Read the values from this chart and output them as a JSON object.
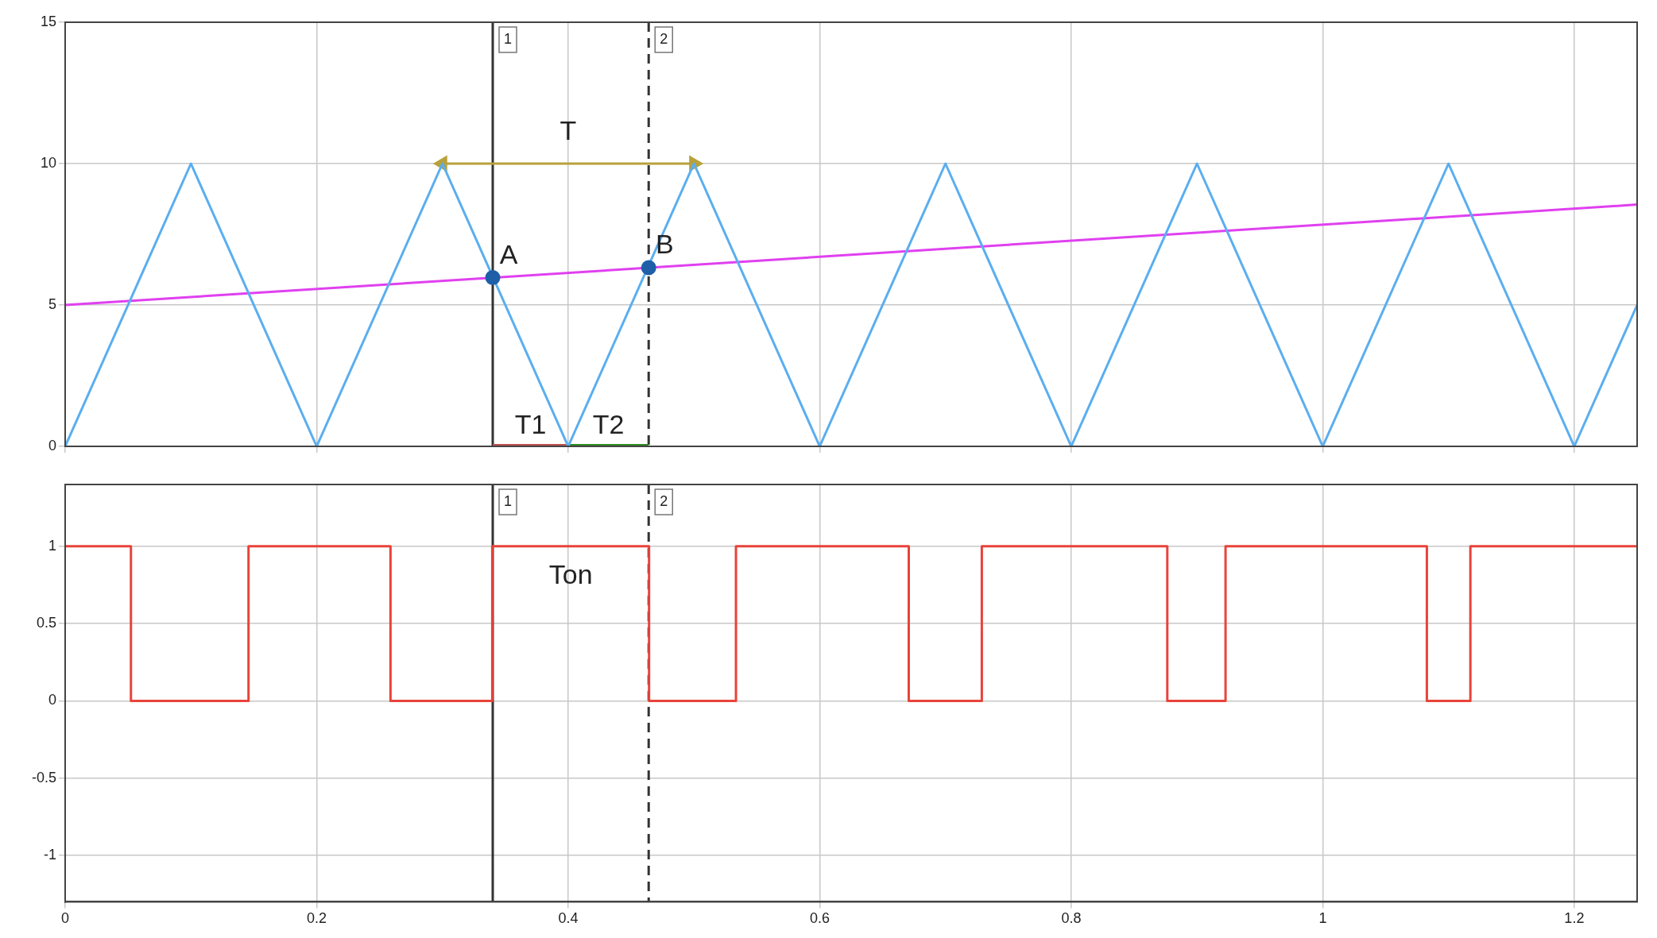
{
  "chart_data": [
    {
      "type": "line",
      "xlim": [
        0,
        1.25
      ],
      "xticks": [
        0,
        0.2,
        0.4,
        0.6,
        0.8,
        1,
        1.2
      ],
      "ylim": [
        0,
        15
      ],
      "yticks": [
        0,
        5,
        10,
        15
      ],
      "grid": true,
      "tick_labels": "y",
      "series": [
        {
          "color": "#5aaef0",
          "x": [
            0,
            0.1,
            0.2,
            0.3,
            0.4,
            0.5,
            0.6,
            0.7,
            0.8,
            0.9,
            1,
            1.1,
            1.2,
            1.25
          ],
          "values": [
            0,
            10,
            0,
            10,
            0,
            10,
            0,
            10,
            0,
            10,
            0,
            10,
            0,
            5
          ]
        },
        {
          "color": "#e040f0",
          "x": [
            0,
            1.25
          ],
          "values": [
            5,
            8.55
          ]
        },
        {
          "color": "#b8a13a",
          "x": [
            0.3,
            0.5
          ],
          "values": [
            10,
            10
          ],
          "marker": "triangle"
        },
        {
          "type": "scatter",
          "color": "#1f5fa8",
          "x": [
            0.34,
            0.464
          ],
          "values": [
            5.97,
            6.32
          ],
          "marker": "circle"
        },
        {
          "name": "T1",
          "color": "#c0504d",
          "x": [
            0.34,
            0.4
          ],
          "values": [
            0,
            0
          ]
        },
        {
          "name": "T2",
          "color": "#2e8b22",
          "x": [
            0.4,
            0.464
          ],
          "values": [
            0,
            0
          ]
        }
      ],
      "ref_lines": [
        {
          "axis": "x",
          "value": 0.34,
          "color": "#333333",
          "line_style": "solid"
        },
        {
          "axis": "x",
          "value": 0.464,
          "color": "#333333",
          "line_style": "dashed"
        }
      ],
      "annotations": [
        "1",
        "2",
        "T",
        {
          "text": "A",
          "x": 0.34,
          "y": 5.97
        },
        {
          "text": "B",
          "x": 0.464,
          "y": 6.32
        }
      ]
    },
    {
      "type": "step",
      "xlim": [
        0,
        1.25
      ],
      "xticks": [
        0,
        0.2,
        0.4,
        0.6,
        0.8,
        1,
        1.2
      ],
      "ylim": [
        -1.3,
        1.4
      ],
      "yticks": [
        -1,
        -0.5,
        0,
        0.5,
        1
      ],
      "grid": true,
      "series": [
        {
          "color": "#e8433a",
          "x": [
            0,
            0.0523,
            0.1458,
            0.2587,
            0.3396,
            0.4643,
            0.5334,
            0.6708,
            0.7289,
            0.8764,
            0.9227,
            1.0828,
            1.1174,
            1.25
          ],
          "values": [
            1,
            0,
            1,
            0,
            1,
            0,
            1,
            0,
            1,
            0,
            1,
            0,
            1,
            1
          ]
        }
      ],
      "ref_lines": [
        {
          "axis": "x",
          "value": 0.34,
          "color": "#333333",
          "line_style": "solid"
        },
        {
          "axis": "x",
          "value": 0.464,
          "color": "#333333",
          "line_style": "dashed"
        }
      ],
      "annotations": [
        "1",
        "2",
        "Ton"
      ]
    }
  ]
}
